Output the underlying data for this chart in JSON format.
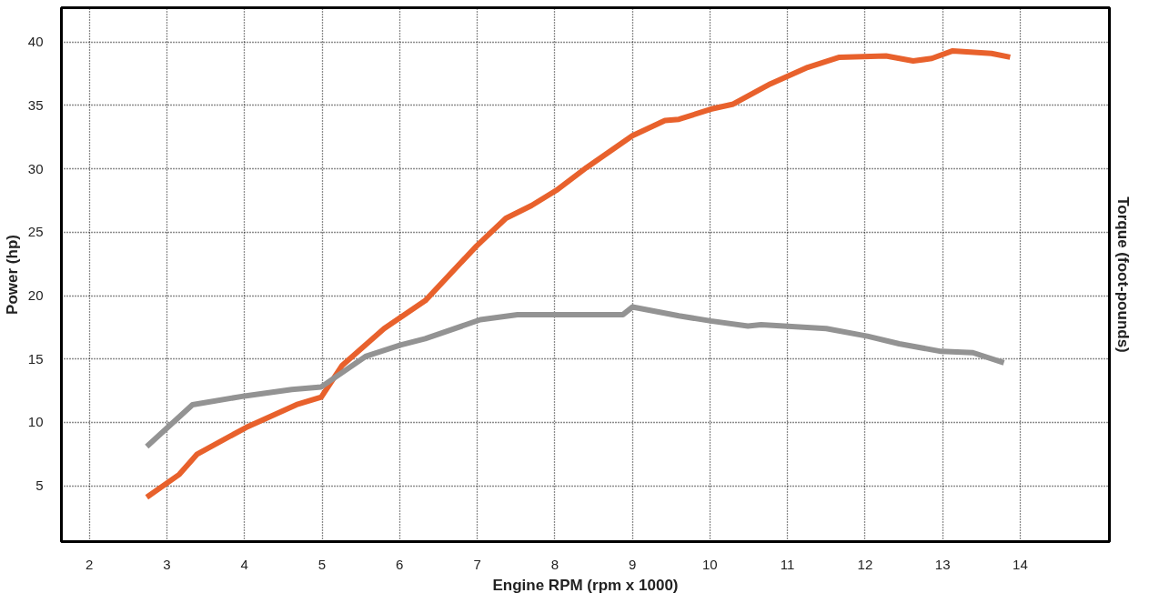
{
  "chart_data": {
    "type": "line",
    "xlabel": "Engine RPM (rpm x 1000)",
    "ylabel": "Power (hp)",
    "y2label": "Torque (foot-pounds)",
    "xlim": [
      1.64,
      15.15
    ],
    "ylim": [
      0.6,
      42.7
    ],
    "xticks": [
      2,
      3,
      4,
      5,
      6,
      7,
      8,
      9,
      10,
      11,
      12,
      13,
      14
    ],
    "yticks": [
      5,
      10,
      15,
      20,
      25,
      30,
      35,
      40
    ],
    "grid": true,
    "marker": "none",
    "line_style": "solid",
    "series": [
      {
        "color": "#e8612c",
        "x": [
          2.74,
          3.16,
          3.39,
          4.02,
          4.67,
          4.99,
          5.26,
          5.8,
          6.33,
          6.99,
          7.37,
          7.7,
          8.02,
          8.41,
          9.0,
          9.42,
          9.6,
          10.01,
          10.3,
          10.78,
          11.26,
          11.67,
          12.27,
          12.62,
          12.86,
          13.13,
          13.63,
          13.87
        ],
        "values": [
          4.1,
          5.9,
          7.5,
          9.6,
          11.4,
          12.0,
          14.5,
          17.4,
          19.6,
          23.9,
          26.1,
          27.1,
          28.3,
          30.1,
          32.6,
          33.8,
          33.9,
          34.7,
          35.1,
          36.7,
          38.0,
          38.8,
          38.9,
          38.5,
          38.7,
          39.3,
          39.1,
          38.8
        ]
      },
      {
        "color": "#939393",
        "x": [
          2.74,
          3.33,
          4.02,
          4.61,
          4.99,
          5.56,
          6.01,
          6.33,
          7.04,
          7.52,
          8.88,
          9.0,
          9.6,
          10.01,
          10.49,
          10.66,
          11.5,
          12.03,
          12.44,
          12.98,
          13.39,
          13.79
        ],
        "values": [
          8.1,
          11.4,
          12.1,
          12.6,
          12.8,
          15.2,
          16.1,
          16.6,
          18.1,
          18.5,
          18.5,
          19.1,
          18.4,
          18.0,
          17.6,
          17.7,
          17.4,
          16.8,
          16.2,
          15.6,
          15.5,
          14.7
        ]
      }
    ]
  }
}
